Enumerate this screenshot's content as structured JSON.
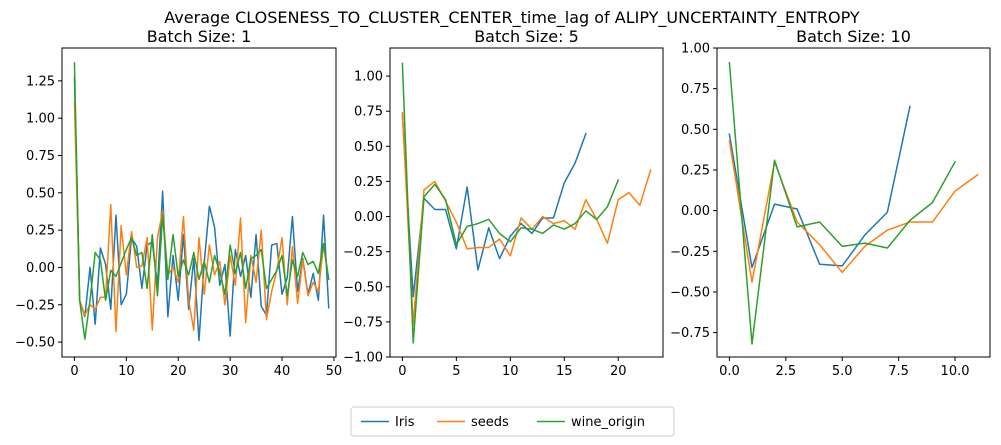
{
  "figure": {
    "suptitle": "Average CLOSENESS_TO_CLUSTER_CENTER_time_lag of ALIPY_UNCERTAINTY_ENTROPY"
  },
  "legend": {
    "placement": "bottom-center",
    "entries": [
      "Iris",
      "seeds",
      "wine_origin"
    ]
  },
  "colors": {
    "Iris": "#1f77b4",
    "seeds": "#ff7f0e",
    "wine_origin": "#2ca02c"
  },
  "chart_data": [
    {
      "type": "line",
      "title": "Batch Size: 1",
      "xlabel": "",
      "ylabel": "",
      "xlim": [
        -2.4,
        50.4
      ],
      "ylim": [
        -0.6,
        1.47
      ],
      "xticks": [
        0,
        10,
        20,
        30,
        40,
        50
      ],
      "xtick_labels": [
        "0",
        "10",
        "20",
        "30",
        "40",
        "50"
      ],
      "yticks": [
        -0.5,
        -0.25,
        0,
        0.25,
        0.5,
        0.75,
        1,
        1.25
      ],
      "ytick_labels": [
        "−0.50",
        "−0.25",
        "0.00",
        "0.25",
        "0.50",
        "0.75",
        "1.00",
        "1.25"
      ],
      "series": [
        {
          "name": "Iris",
          "x_start": 0,
          "values": [
            1.27,
            -0.22,
            -0.33,
            0.0,
            -0.38,
            0.13,
            0.02,
            -0.28,
            0.35,
            -0.25,
            -0.18,
            0.2,
            0.14,
            -0.14,
            0.15,
            0.17,
            -0.12,
            0.51,
            -0.33,
            0.08,
            -0.22,
            0.22,
            -0.28,
            0.06,
            -0.49,
            0.03,
            0.41,
            0.27,
            -0.12,
            0.02,
            -0.46,
            0.12,
            -0.06,
            0.08,
            -0.2,
            0.22,
            -0.26,
            -0.32,
            0.15,
            0.16,
            -0.18,
            -0.07,
            0.34,
            -0.16,
            0.06,
            -0.18,
            -0.04,
            -0.22,
            0.35,
            -0.27
          ]
        },
        {
          "name": "seeds",
          "x_start": 0,
          "values": [
            1.11,
            -0.22,
            -0.32,
            -0.25,
            -0.28,
            -0.2,
            -0.2,
            0.42,
            -0.43,
            0.28,
            -0.05,
            0.24,
            0.0,
            0.01,
            0.2,
            -0.42,
            0.2,
            0.38,
            -0.05,
            0.0,
            -0.1,
            0.34,
            -0.22,
            -0.42,
            0.2,
            -0.18,
            0.15,
            -0.05,
            0.04,
            -0.25,
            0.08,
            -0.12,
            0.33,
            -0.37,
            0.08,
            -0.1,
            0.25,
            -0.35,
            -0.16,
            -0.02,
            0.2,
            -0.25,
            0.14,
            -0.24,
            0.05,
            -0.19,
            -0.1,
            -0.16,
            0.15,
            -0.08
          ]
        },
        {
          "name": "wine_origin",
          "x_start": 0,
          "values": [
            1.37,
            -0.22,
            -0.48,
            -0.22,
            0.1,
            0.05,
            -0.22,
            -0.02,
            -0.06,
            0.03,
            0.12,
            0.2,
            0.08,
            0.1,
            -0.14,
            0.22,
            -0.19,
            0.35,
            -0.08,
            0.22,
            -0.06,
            0.05,
            -0.05,
            0.1,
            -0.08,
            0.04,
            -0.1,
            0.08,
            -0.03,
            -0.18,
            0.15,
            -0.04,
            0.1,
            -0.14,
            0.06,
            0.08,
            0.12,
            -0.14,
            -0.08,
            -0.02,
            0.08,
            -0.19,
            0.05,
            -0.06,
            0.1,
            0.02,
            0.04,
            -0.04,
            0.16,
            -0.08
          ]
        }
      ]
    },
    {
      "type": "line",
      "title": "Batch Size: 5",
      "xlabel": "",
      "ylabel": "",
      "xlim": [
        -1.15,
        24.15
      ],
      "ylim": [
        -1.0,
        1.2
      ],
      "xticks": [
        0,
        5,
        10,
        15,
        20
      ],
      "xtick_labels": [
        "0",
        "5",
        "10",
        "15",
        "20"
      ],
      "yticks": [
        -1.0,
        -0.75,
        -0.5,
        -0.25,
        0,
        0.25,
        0.5,
        0.75,
        1.0
      ],
      "ytick_labels": [
        "−1.00",
        "−0.75",
        "−0.50",
        "−0.25",
        "0.00",
        "0.25",
        "0.50",
        "0.75",
        "1.00"
      ],
      "series": [
        {
          "name": "Iris",
          "x_start": 0,
          "values": [
            0.72,
            -0.57,
            0.13,
            0.05,
            0.05,
            -0.23,
            0.21,
            -0.38,
            -0.08,
            -0.3,
            -0.14,
            -0.05,
            -0.12,
            -0.01,
            -0.01,
            0.24,
            0.38,
            0.59
          ]
        },
        {
          "name": "seeds",
          "x_start": 0,
          "values": [
            0.74,
            -0.77,
            0.19,
            0.25,
            0.11,
            -0.04,
            -0.23,
            -0.22,
            -0.22,
            -0.16,
            -0.28,
            -0.01,
            -0.09,
            0.0,
            -0.05,
            -0.03,
            -0.09,
            0.12,
            -0.02,
            -0.19,
            0.12,
            0.17,
            0.08,
            0.33
          ]
        },
        {
          "name": "wine_origin",
          "x_start": 0,
          "values": [
            1.09,
            -0.9,
            0.14,
            0.23,
            0.12,
            -0.2,
            -0.07,
            -0.05,
            -0.02,
            -0.12,
            -0.18,
            -0.08,
            -0.09,
            -0.12,
            -0.06,
            -0.09,
            -0.05,
            0.04,
            -0.02,
            0.07,
            0.26
          ]
        }
      ]
    },
    {
      "type": "line",
      "title": "Batch Size: 10",
      "xlabel": "",
      "ylabel": "",
      "xlim": [
        -0.55,
        11.55
      ],
      "ylim": [
        -0.9,
        1.0
      ],
      "xticks": [
        0,
        2.5,
        5,
        7.5,
        10
      ],
      "xtick_labels": [
        "0.0",
        "2.5",
        "5.0",
        "7.5",
        "10.0"
      ],
      "yticks": [
        -0.75,
        -0.5,
        -0.25,
        0,
        0.25,
        0.5,
        0.75,
        1.0
      ],
      "ytick_labels": [
        "−0.75",
        "−0.50",
        "−0.25",
        "0.00",
        "0.25",
        "0.50",
        "0.75",
        "1.00"
      ],
      "series": [
        {
          "name": "Iris",
          "x_start": 0,
          "values": [
            0.47,
            -0.35,
            0.04,
            0.01,
            -0.33,
            -0.34,
            -0.15,
            -0.01,
            0.64
          ]
        },
        {
          "name": "seeds",
          "x_start": 0,
          "values": [
            0.43,
            -0.44,
            0.3,
            -0.07,
            -0.21,
            -0.38,
            -0.22,
            -0.12,
            -0.07,
            -0.07,
            0.12,
            0.22
          ]
        },
        {
          "name": "wine_origin",
          "x_start": 0,
          "values": [
            0.91,
            -0.82,
            0.31,
            -0.1,
            -0.07,
            -0.22,
            -0.2,
            -0.23,
            -0.06,
            0.05,
            0.3
          ]
        }
      ]
    }
  ]
}
